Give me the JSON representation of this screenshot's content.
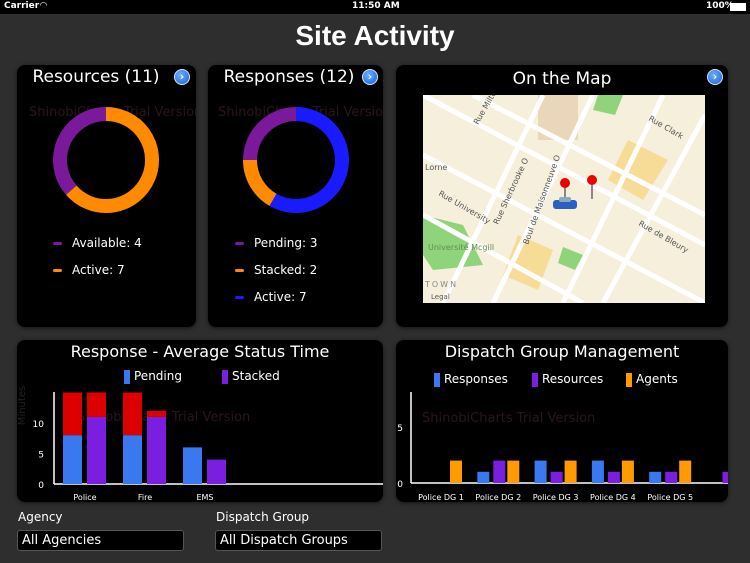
{
  "status_bar": {
    "carrier": "Carrier",
    "time": "11:50 AM",
    "battery": "100%"
  },
  "title": "Site Activity",
  "resources": {
    "title": "Resources (11)",
    "watermark": "ShinobiCharts Trial Version",
    "slices": [
      {
        "label": "Available: 4",
        "value": 4,
        "color": "#7a1a9a"
      },
      {
        "label": "Active: 7",
        "value": 7,
        "color": "#ff8a00"
      }
    ]
  },
  "responses": {
    "title": "Responses (12)",
    "watermark": "ShinobiCharts Trial Version",
    "slices": [
      {
        "label": "Pending: 3",
        "value": 3,
        "color": "#7a1a9a"
      },
      {
        "label": "Stacked: 2",
        "value": 2,
        "color": "#ff8a00"
      },
      {
        "label": "Active: 7",
        "value": 7,
        "color": "#1a1aff"
      }
    ]
  },
  "map": {
    "title": "On the Map",
    "labels": [
      "Rue Milton",
      "Rue Sherbrooke O",
      "Boul de Maisonneuve O",
      "Rue University",
      "Rue Clark",
      "Rue de Bleury",
      "Université Mcgill",
      "Lorne",
      "TOWN",
      "Legal"
    ],
    "icons": [
      "pin-icon",
      "pin-icon",
      "police-car-icon"
    ]
  },
  "chart_data": [
    {
      "type": "bar",
      "title": "Response - Average Status Time",
      "ylabel": "Minutes",
      "watermark": "ShinobiCharts Trial Version",
      "categories": [
        "Police",
        "Fire",
        "EMS"
      ],
      "ylim": [
        0,
        15
      ],
      "yticks": [
        "0",
        "5",
        "10"
      ],
      "legend": [
        "Pending",
        "Stacked"
      ],
      "series": [
        {
          "name": "Pending",
          "values": [
            8,
            8,
            6
          ],
          "extra": [
            7,
            7,
            0
          ],
          "color": "#3a78f0"
        },
        {
          "name": "Stacked",
          "values": [
            11,
            11,
            4
          ],
          "extra": [
            4,
            1,
            0
          ],
          "color": "#7a1ee0"
        }
      ],
      "overflow_color": "#dd0000"
    },
    {
      "type": "bar",
      "title": "Dispatch Group Management",
      "watermark": "ShinobiCharts Trial Version",
      "categories": [
        "Police DG 1",
        "Police DG 2",
        "Police DG 3",
        "Police DG 4",
        "Police DG 5",
        ""
      ],
      "ylim": [
        0,
        8
      ],
      "yticks": [
        "0",
        "5"
      ],
      "legend": [
        "Responses",
        "Resources",
        "Agents"
      ],
      "series": [
        {
          "name": "Responses",
          "values": [
            0,
            1,
            2,
            2,
            1,
            0
          ],
          "color": "#3a78f0"
        },
        {
          "name": "Resources",
          "values": [
            0,
            2,
            1,
            1,
            1,
            1
          ],
          "color": "#7a1ee0"
        },
        {
          "name": "Agents",
          "values": [
            2,
            2,
            2,
            2,
            2,
            0
          ],
          "color": "#ff9a00"
        }
      ]
    }
  ],
  "filters": {
    "agency_label": "Agency",
    "agency_value": "All Agencies",
    "group_label": "Dispatch Group",
    "group_value": "All Dispatch Groups"
  }
}
